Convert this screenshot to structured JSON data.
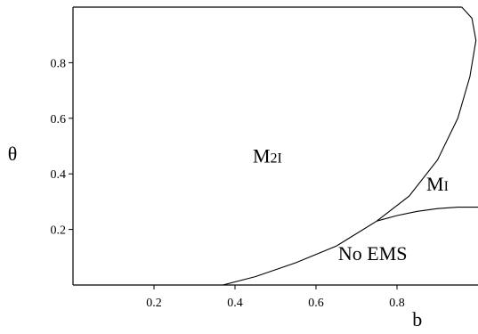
{
  "chart_data": {
    "type": "region",
    "xlabel": "b",
    "ylabel": "θ",
    "xlim": [
      0,
      1.0
    ],
    "ylim": [
      0,
      1.0
    ],
    "x_ticks": [
      0.2,
      0.4,
      0.6,
      0.8
    ],
    "y_ticks": [
      0.2,
      0.4,
      0.6,
      0.8
    ],
    "tick_labels": {
      "x": [
        "0.2",
        "0.4",
        "0.6",
        "0.8"
      ],
      "y": [
        "0.2",
        "0.4",
        "0.6",
        "0.8"
      ]
    },
    "grid": false,
    "curves": [
      {
        "points": [
          [
            0.37,
            0.0
          ],
          [
            0.45,
            0.03
          ],
          [
            0.55,
            0.08
          ],
          [
            0.65,
            0.14
          ],
          [
            0.75,
            0.23
          ],
          [
            0.83,
            0.32
          ],
          [
            0.9,
            0.45
          ],
          [
            0.95,
            0.6
          ],
          [
            0.98,
            0.75
          ],
          [
            0.995,
            0.88
          ],
          [
            0.985,
            0.96
          ],
          [
            0.96,
            1.0
          ]
        ]
      },
      {
        "points": [
          [
            0.75,
            0.23
          ],
          [
            0.8,
            0.25
          ],
          [
            0.85,
            0.265
          ],
          [
            0.9,
            0.275
          ],
          [
            0.95,
            0.28
          ],
          [
            1.0,
            0.28
          ]
        ]
      }
    ],
    "regions": [
      {
        "label_main": "M",
        "label_sub": "2I",
        "x": 0.48,
        "y": 0.44
      },
      {
        "label_main": "M",
        "label_sub": "I",
        "x": 0.9,
        "y": 0.34
      },
      {
        "label_main": "No EMS",
        "label_sub": "",
        "x": 0.74,
        "y": 0.09
      }
    ]
  }
}
